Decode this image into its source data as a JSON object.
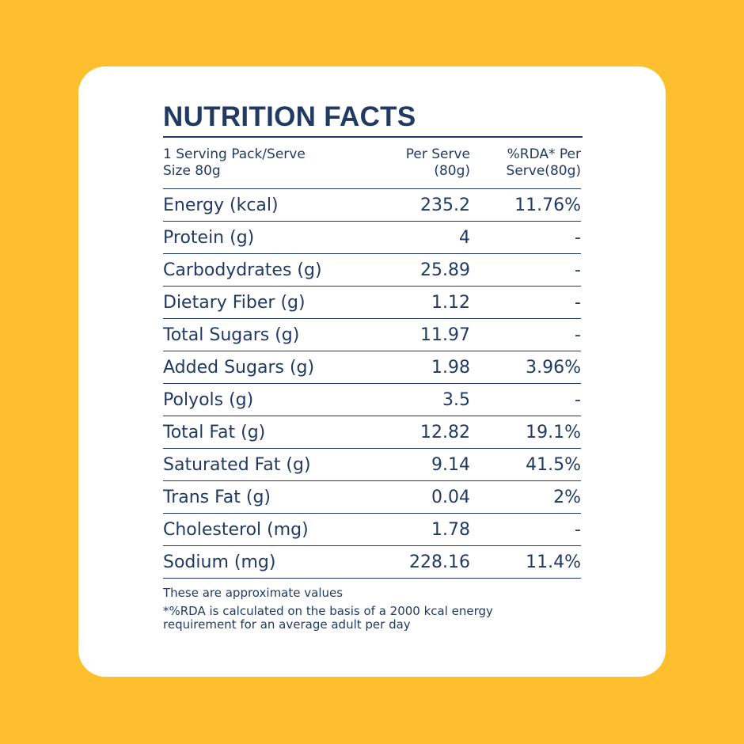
{
  "title": "NUTRITION FACTS",
  "header": {
    "serving": "1 Serving Pack/Serve Size 80g",
    "per_serve": "Per Serve (80g)",
    "rda": "%RDA* Per Serve(80g)"
  },
  "rows": [
    {
      "name": "Energy (kcal)",
      "per_serve": "235.2",
      "rda": "11.76%"
    },
    {
      "name": "Protein (g)",
      "per_serve": "4",
      "rda": "-"
    },
    {
      "name": "Carbodydrates (g)",
      "per_serve": "25.89",
      "rda": "-"
    },
    {
      "name": "Dietary Fiber (g)",
      "per_serve": "1.12",
      "rda": "-"
    },
    {
      "name": "Total Sugars (g)",
      "per_serve": "11.97",
      "rda": "-"
    },
    {
      "name": "Added Sugars (g)",
      "per_serve": "1.98",
      "rda": "3.96%"
    },
    {
      "name": "Polyols (g)",
      "per_serve": "3.5",
      "rda": "-"
    },
    {
      "name": "Total Fat (g)",
      "per_serve": "12.82",
      "rda": "19.1%"
    },
    {
      "name": "Saturated Fat (g)",
      "per_serve": "9.14",
      "rda": "41.5%"
    },
    {
      "name": "Trans Fat (g)",
      "per_serve": "0.04",
      "rda": "2%"
    },
    {
      "name": "Cholesterol (mg)",
      "per_serve": "1.78",
      "rda": "-"
    },
    {
      "name": "Sodium (mg)",
      "per_serve": "228.16",
      "rda": "11.4%"
    }
  ],
  "footnotes": {
    "approx": "These are approximate values",
    "rda_basis": "*%RDA is calculated on the basis of a 2000 kcal energy requirement for an average adult per day"
  },
  "colors": {
    "background": "#fdbf2d",
    "card": "#ffffff",
    "text": "#213a63"
  }
}
